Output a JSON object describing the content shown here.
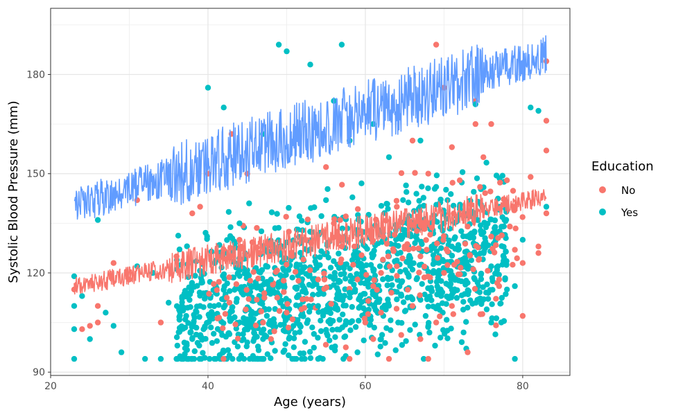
{
  "chart_data": {
    "type": "scatter",
    "title": "",
    "xlabel": "Age (years)",
    "ylabel": "Systolic Blood Pressure (mm)",
    "xlim": [
      20,
      86
    ],
    "ylim": [
      89,
      200
    ],
    "x_ticks": [
      20,
      40,
      60,
      80
    ],
    "y_ticks": [
      90,
      120,
      150,
      180
    ],
    "grid": true,
    "legend": {
      "title": "Education",
      "position": "right",
      "entries": [
        {
          "label": "No",
          "color": "#F8766D"
        },
        {
          "label": "Yes",
          "color": "#00BFC4"
        }
      ]
    },
    "series": [
      {
        "name": "No",
        "kind": "points",
        "color": "#F8766D",
        "points": [
          [
            23,
            115
          ],
          [
            25,
            104
          ],
          [
            26,
            110
          ],
          [
            26,
            105
          ],
          [
            31,
            142
          ],
          [
            34,
            105
          ],
          [
            38,
            138
          ],
          [
            40,
            150
          ],
          [
            43,
            162
          ],
          [
            45,
            150
          ],
          [
            48,
            100
          ],
          [
            50,
            108
          ],
          [
            52,
            112
          ],
          [
            55,
            152
          ],
          [
            57,
            128
          ],
          [
            58,
            160
          ],
          [
            60,
            105
          ],
          [
            61,
            100
          ],
          [
            62,
            108
          ],
          [
            63,
            94
          ],
          [
            64,
            140
          ],
          [
            65,
            128
          ],
          [
            66,
            160
          ],
          [
            67,
            100
          ],
          [
            68,
            94
          ],
          [
            68,
            150
          ],
          [
            69,
            189
          ],
          [
            70,
            176
          ],
          [
            70,
            120
          ],
          [
            71,
            158
          ],
          [
            72,
            148
          ],
          [
            73,
            134
          ],
          [
            74,
            165
          ],
          [
            74,
            172
          ],
          [
            75,
            155
          ],
          [
            76,
            165
          ],
          [
            77,
            118
          ],
          [
            78,
            148
          ],
          [
            79,
            140
          ],
          [
            80,
            123
          ],
          [
            80,
            107
          ],
          [
            81,
            149
          ],
          [
            82,
            128
          ],
          [
            83,
            184
          ],
          [
            83,
            157
          ],
          [
            83,
            166
          ],
          [
            83,
            138
          ],
          [
            82,
            126
          ],
          [
            79,
            127
          ],
          [
            76,
            131
          ],
          [
            67,
            125
          ],
          [
            64,
            122
          ],
          [
            62,
            120
          ],
          [
            56,
            135
          ],
          [
            54,
            118
          ],
          [
            47,
            105
          ],
          [
            44,
            130
          ],
          [
            39,
            140
          ],
          [
            36,
            125
          ],
          [
            28,
            123
          ],
          [
            30,
            118
          ],
          [
            24,
            103
          ],
          [
            58,
            94
          ],
          [
            71,
            110
          ],
          [
            73,
            96
          ],
          [
            77,
            116
          ],
          [
            59,
            118
          ],
          [
            61,
            116
          ],
          [
            66,
            110
          ],
          [
            69,
            105
          ]
        ]
      },
      {
        "name": "Yes",
        "kind": "points",
        "color": "#00BFC4",
        "points": [
          [
            23,
            94
          ],
          [
            23,
            110
          ],
          [
            23,
            103
          ],
          [
            23,
            119
          ],
          [
            24,
            113
          ],
          [
            25,
            100
          ],
          [
            26,
            136
          ],
          [
            27,
            108
          ],
          [
            28,
            104
          ],
          [
            29,
            96
          ],
          [
            31,
            122
          ],
          [
            32,
            94
          ],
          [
            34,
            94
          ],
          [
            35,
            111
          ],
          [
            36,
            94
          ],
          [
            38,
            94
          ],
          [
            38,
            100
          ],
          [
            39,
            110
          ],
          [
            40,
            176
          ],
          [
            41,
            94
          ],
          [
            42,
            170
          ],
          [
            43,
            106
          ],
          [
            44,
            135
          ],
          [
            45,
            99
          ],
          [
            46,
            94
          ],
          [
            47,
            162
          ],
          [
            48,
            118
          ],
          [
            49,
            189
          ],
          [
            50,
            187
          ],
          [
            51,
            94
          ],
          [
            52,
            130
          ],
          [
            53,
            183
          ],
          [
            55,
            142
          ],
          [
            56,
            172
          ],
          [
            57,
            189
          ],
          [
            58,
            160
          ],
          [
            59,
            96
          ],
          [
            60,
            128
          ],
          [
            61,
            165
          ],
          [
            62,
            100
          ],
          [
            63,
            155
          ],
          [
            64,
            112
          ],
          [
            65,
            133
          ],
          [
            66,
            121
          ],
          [
            67,
            160
          ],
          [
            68,
            104
          ],
          [
            69,
            146
          ],
          [
            70,
            135
          ],
          [
            71,
            128
          ],
          [
            72,
            140
          ],
          [
            73,
            117
          ],
          [
            74,
            171
          ],
          [
            75,
            112
          ],
          [
            76,
            105
          ],
          [
            77,
            140
          ],
          [
            78,
            115
          ],
          [
            79,
            94
          ],
          [
            80,
            130
          ],
          [
            81,
            170
          ],
          [
            82,
            169
          ],
          [
            83,
            140
          ],
          [
            79,
            116
          ],
          [
            76,
            122
          ],
          [
            66,
            112
          ],
          [
            58,
            114
          ],
          [
            54,
            110
          ],
          [
            47,
            100
          ],
          [
            42,
            115
          ],
          [
            37,
            113
          ],
          [
            33,
            120
          ]
        ]
      },
      {
        "name": "Education=No fitted",
        "kind": "line",
        "color": "#F8766D",
        "x_range": [
          23,
          83
        ],
        "y_start": 116,
        "y_end": 143,
        "noise": 7
      },
      {
        "name": "Education=Yes fitted",
        "kind": "line",
        "color": "#619CFF",
        "x_range": [
          23,
          83
        ],
        "y_start": 140,
        "y_end": 186,
        "noise": 14
      }
    ]
  }
}
